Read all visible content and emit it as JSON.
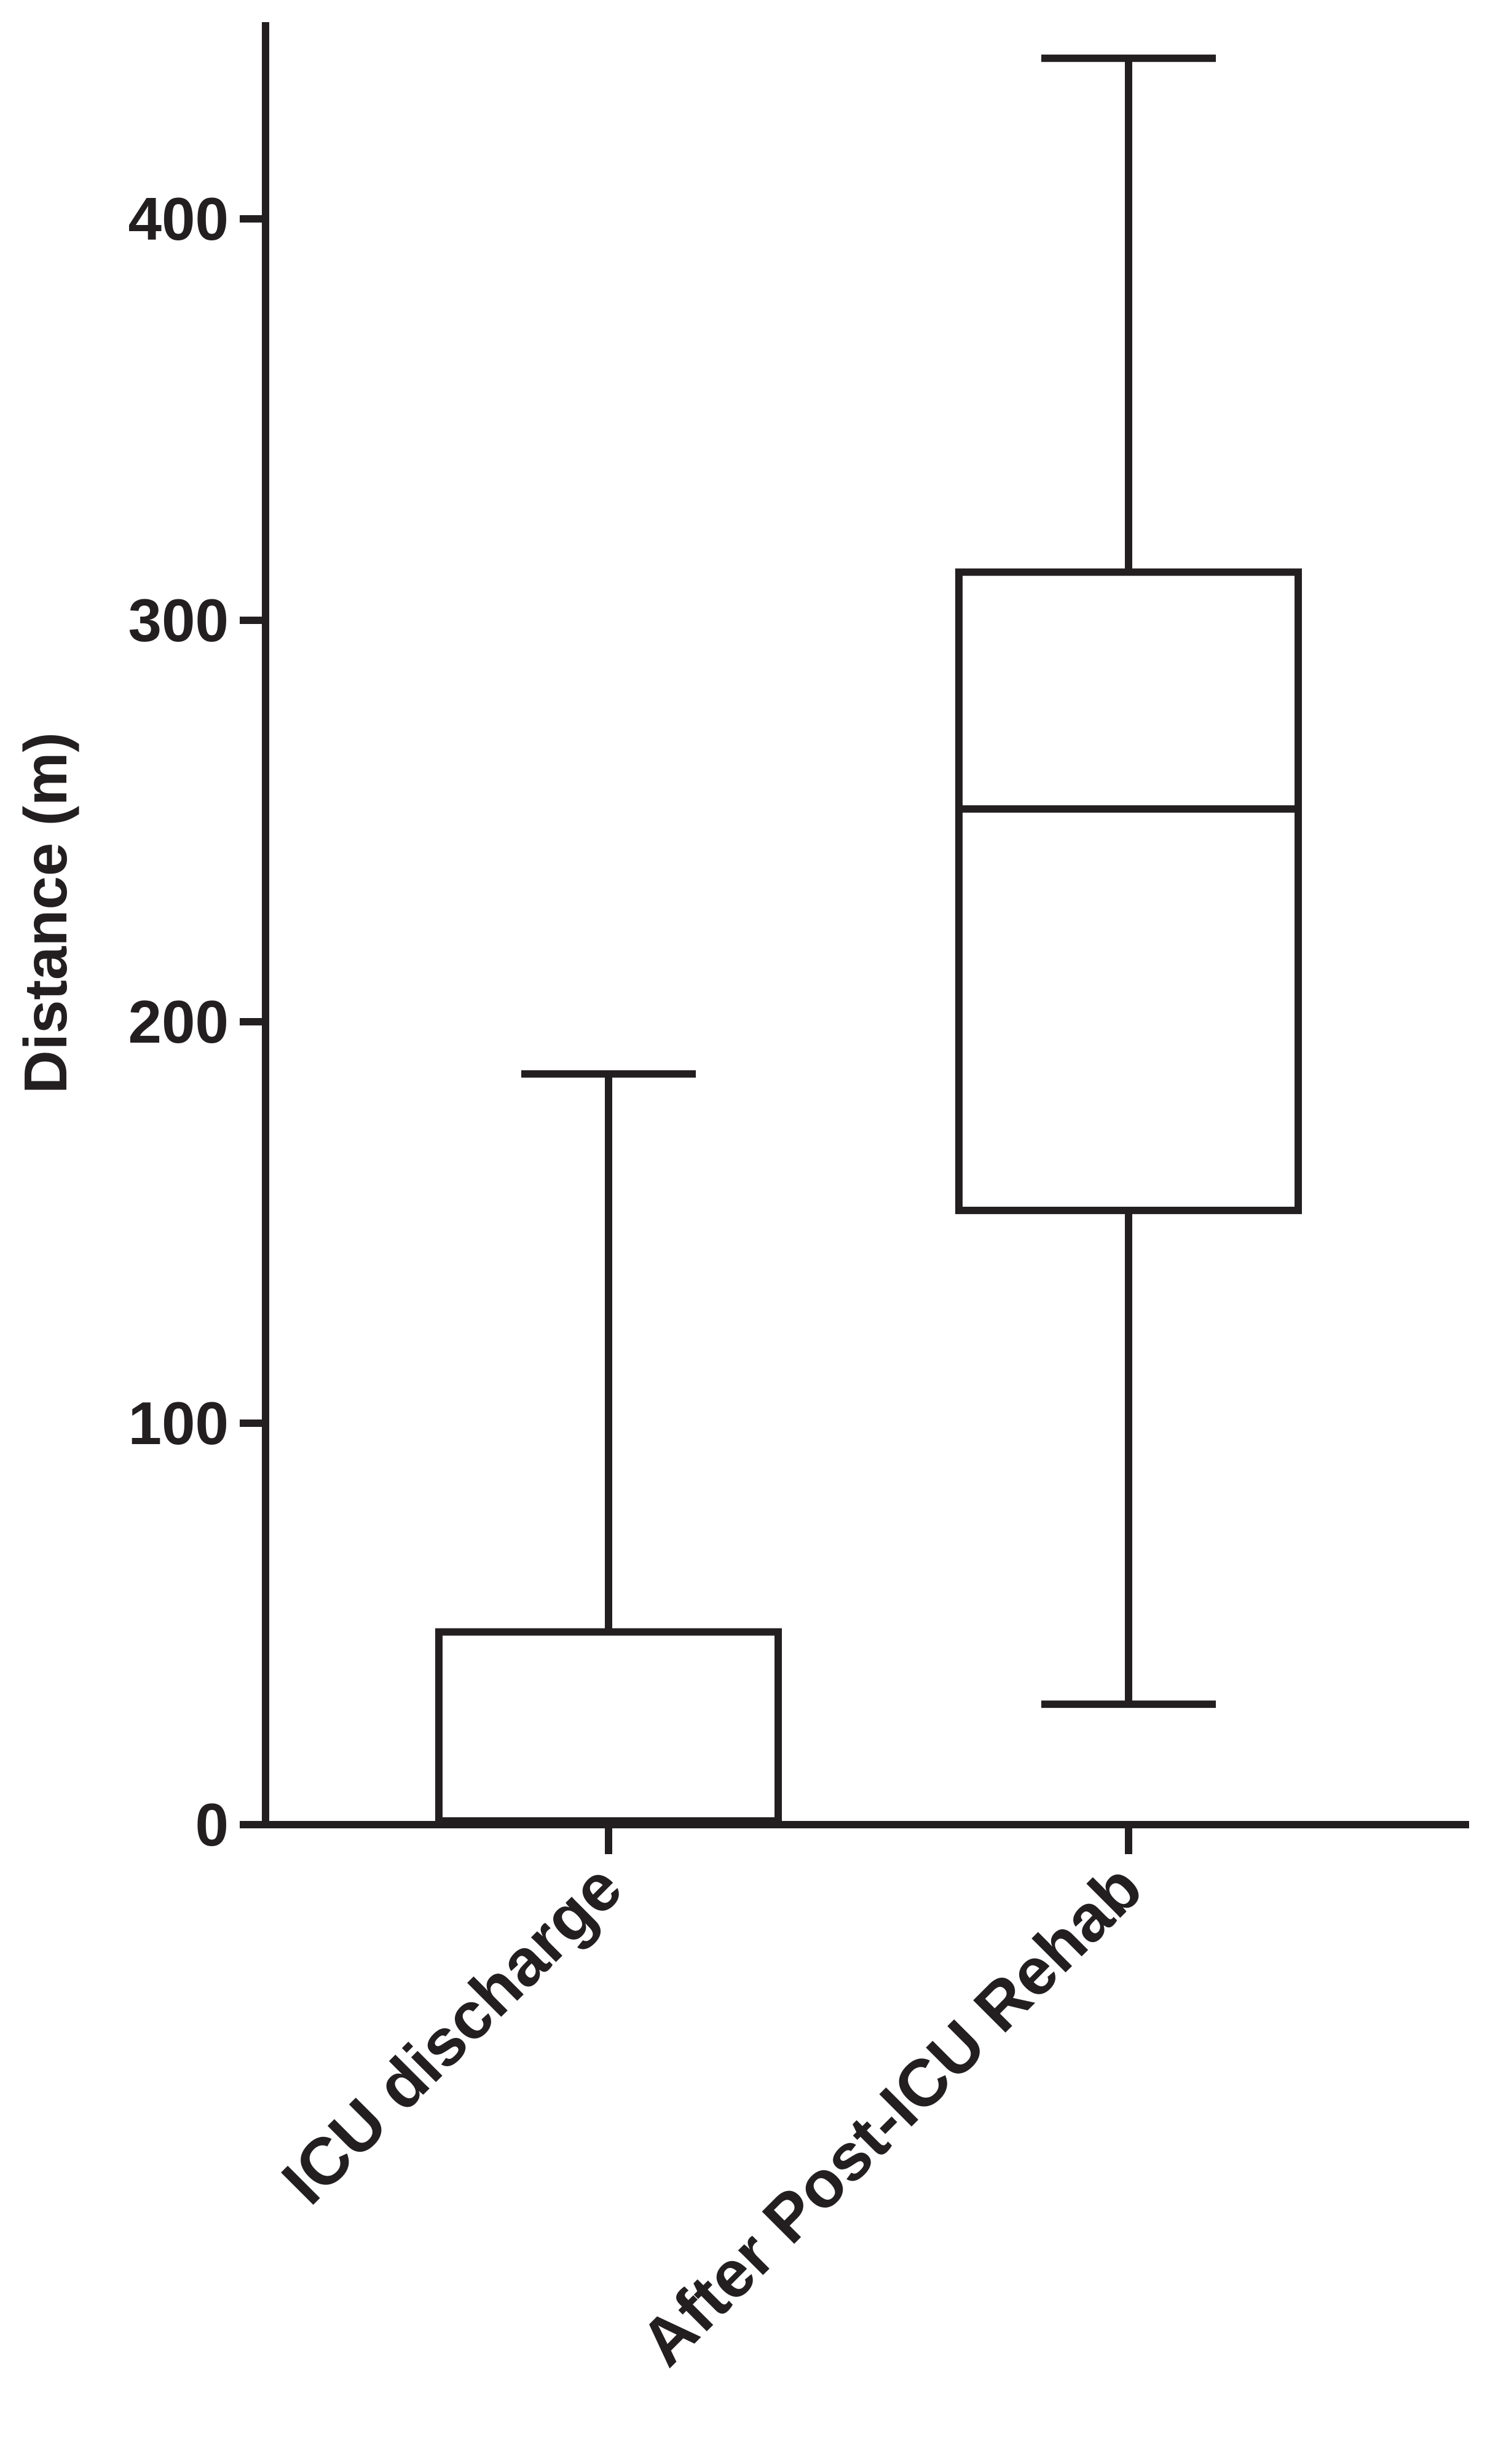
{
  "chart_data": {
    "type": "box",
    "ylabel": "Distance (m)",
    "xlabel": "",
    "ylim": [
      0,
      450
    ],
    "yticks": [
      0,
      100,
      200,
      300,
      400
    ],
    "categories": [
      "ICU discharge",
      "After Post-ICU Rehab"
    ],
    "boxes": [
      {
        "category": "ICU discharge",
        "min": 0,
        "q1": 0,
        "median": 0,
        "q3": 48,
        "max": 187
      },
      {
        "category": "After Post-ICU Rehab",
        "min": 30,
        "q1": 153,
        "median": 253,
        "q3": 312,
        "max": 440
      }
    ],
    "grid": false,
    "colors": {
      "ink": "#231f20",
      "background": "#ffffff"
    }
  }
}
